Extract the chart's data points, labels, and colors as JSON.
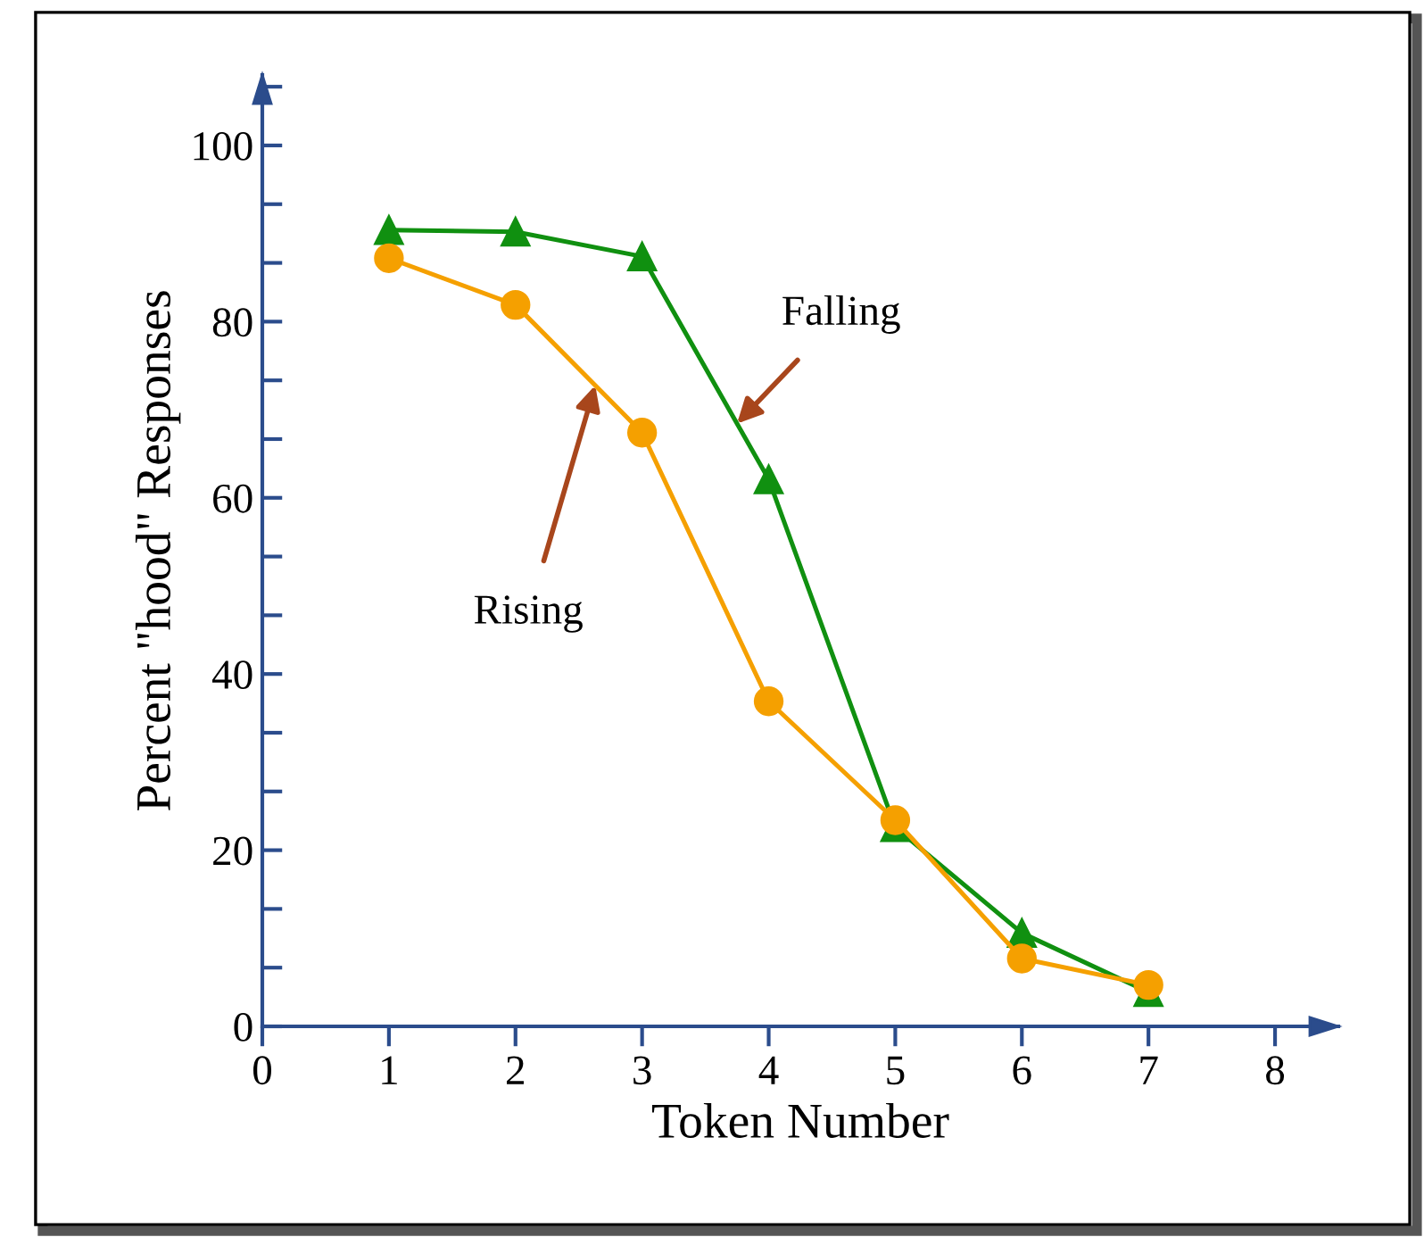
{
  "chart_data": {
    "type": "line",
    "xlabel": "Token Number",
    "ylabel": "Percent \"hood\" Responses",
    "x": [
      1,
      2,
      3,
      4,
      5,
      6,
      7
    ],
    "series": [
      {
        "name": "Falling",
        "color": "#109010",
        "marker": "triangle",
        "values": [
          90.4,
          90.2,
          87.4,
          62.1,
          22.6,
          10.6,
          3.9
        ]
      },
      {
        "name": "Rising",
        "color": "#f5a000",
        "marker": "circle",
        "values": [
          87.2,
          81.9,
          67.4,
          36.9,
          23.4,
          7.7,
          4.7
        ]
      }
    ],
    "xlim": [
      0,
      8.5
    ],
    "xticks": [
      0,
      1,
      2,
      3,
      4,
      5,
      6,
      7,
      8
    ],
    "ylim": [
      0,
      108
    ],
    "yticks": [
      0,
      20,
      40,
      60,
      80,
      100
    ],
    "grid": false,
    "legend": false
  }
}
